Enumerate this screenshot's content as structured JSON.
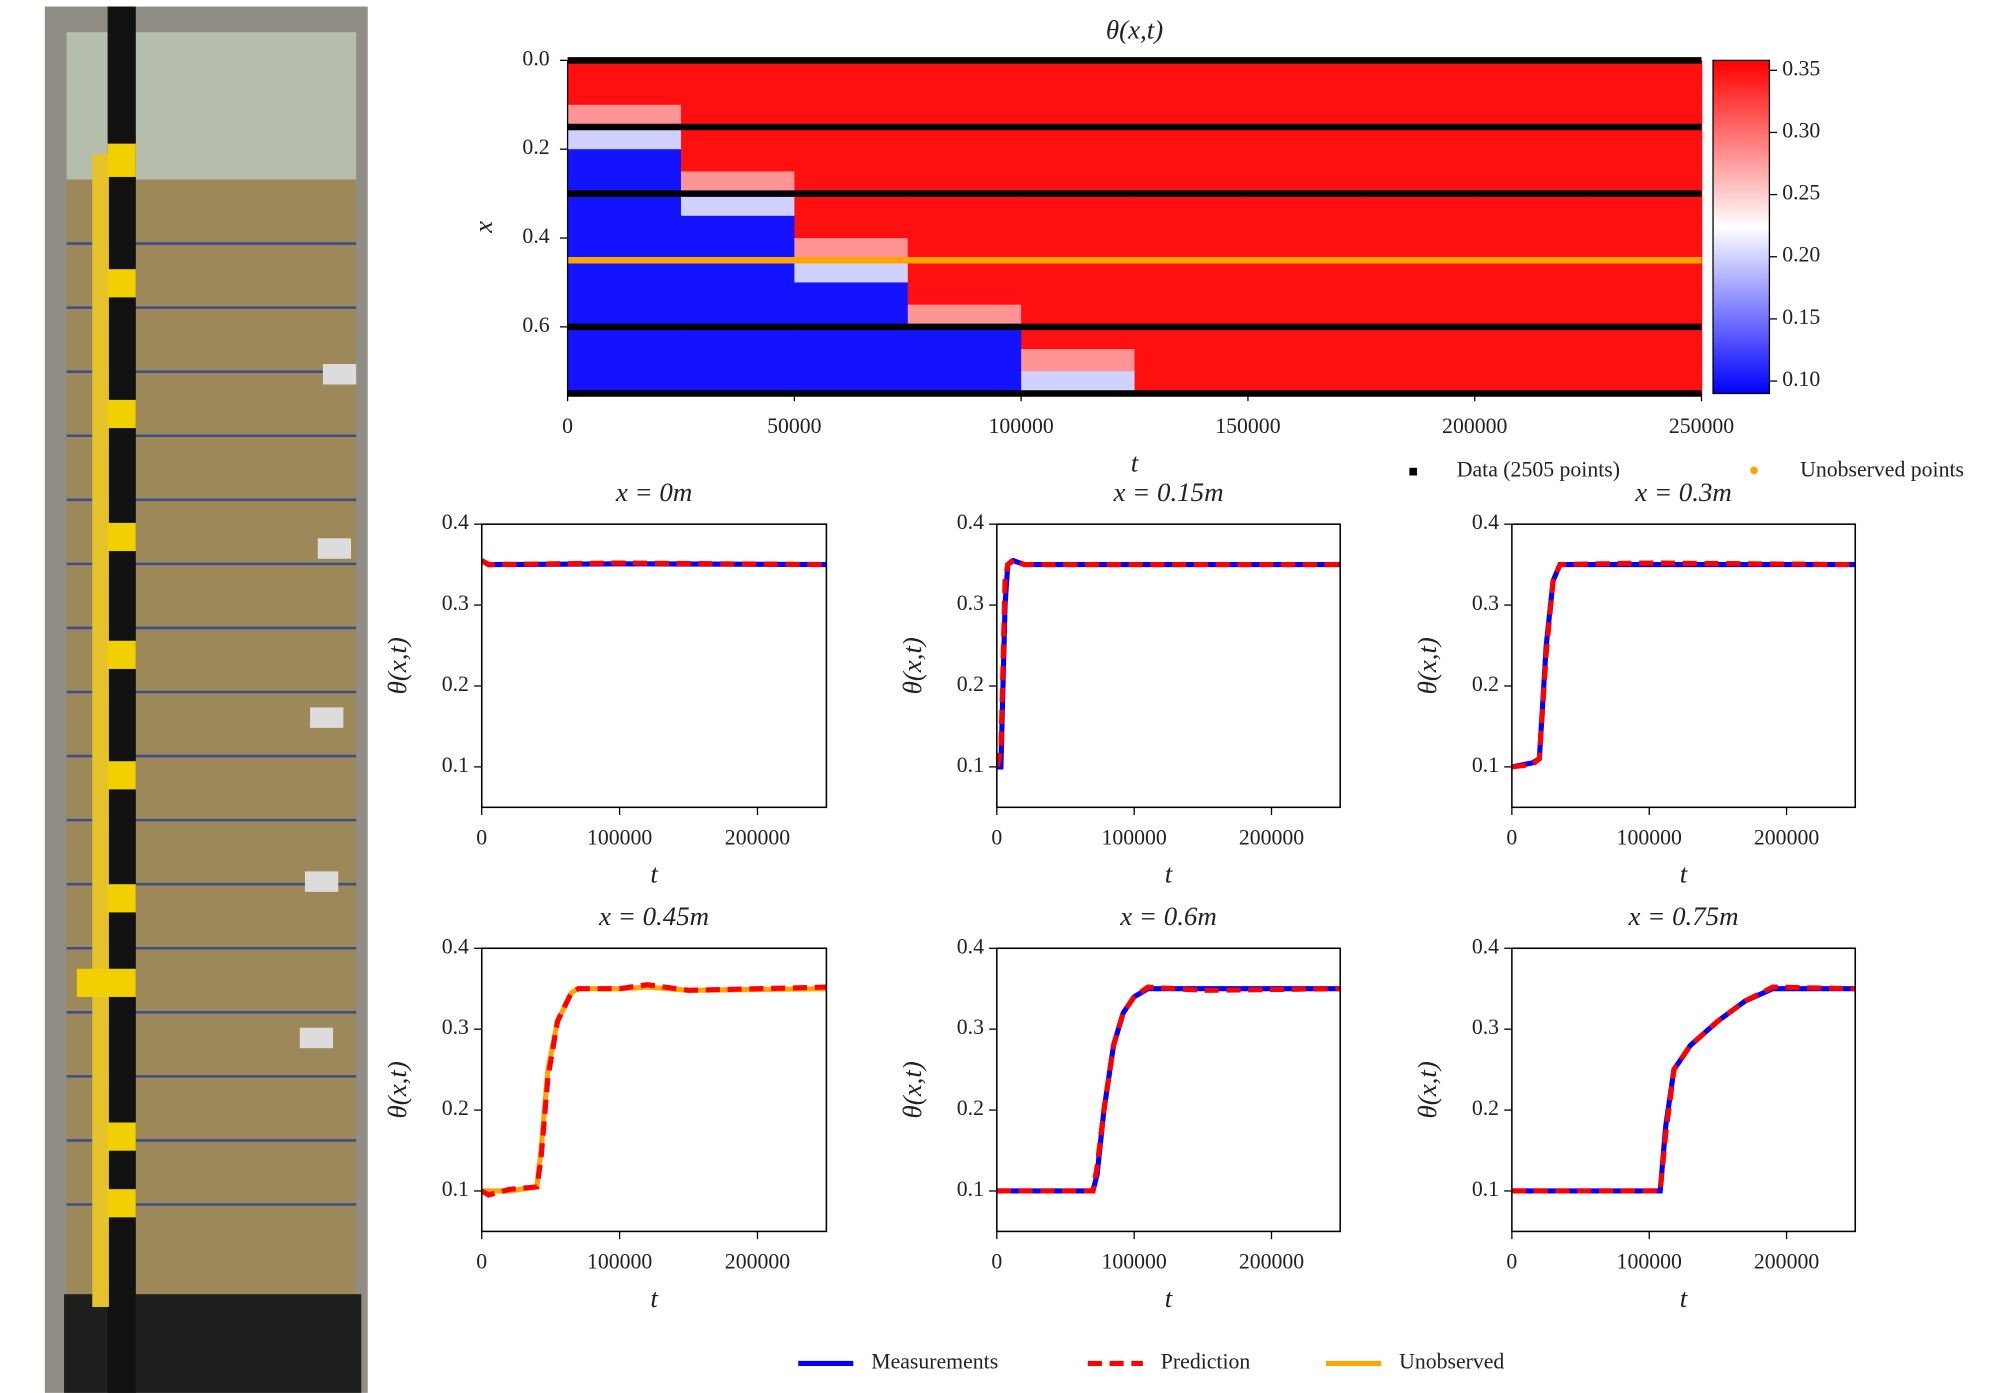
{
  "chart_data": [
    {
      "type": "heatmap",
      "title": "θ(x,t)",
      "xlabel": "t",
      "ylabel": "x",
      "t_edges": [
        0,
        25000,
        50000,
        75000,
        100000,
        125000,
        150000,
        175000,
        200000,
        225000,
        250000
      ],
      "x_edges": [
        0,
        0.05,
        0.1,
        0.15,
        0.2,
        0.25,
        0.3,
        0.35,
        0.4,
        0.45,
        0.5,
        0.55,
        0.6,
        0.65,
        0.7,
        0.75
      ],
      "z": [
        [
          0.35,
          0.35,
          0.35,
          0.35,
          0.35,
          0.35,
          0.35,
          0.35,
          0.35,
          0.35
        ],
        [
          0.35,
          0.35,
          0.35,
          0.35,
          0.35,
          0.35,
          0.35,
          0.35,
          0.35,
          0.35
        ],
        [
          0.28,
          0.35,
          0.35,
          0.35,
          0.35,
          0.35,
          0.35,
          0.35,
          0.35,
          0.35
        ],
        [
          0.2,
          0.35,
          0.35,
          0.35,
          0.35,
          0.35,
          0.35,
          0.35,
          0.35,
          0.35
        ],
        [
          0.1,
          0.35,
          0.35,
          0.35,
          0.35,
          0.35,
          0.35,
          0.35,
          0.35,
          0.35
        ],
        [
          0.1,
          0.28,
          0.35,
          0.35,
          0.35,
          0.35,
          0.35,
          0.35,
          0.35,
          0.35
        ],
        [
          0.1,
          0.2,
          0.35,
          0.35,
          0.35,
          0.35,
          0.35,
          0.35,
          0.35,
          0.35
        ],
        [
          0.1,
          0.1,
          0.35,
          0.35,
          0.35,
          0.35,
          0.35,
          0.35,
          0.35,
          0.35
        ],
        [
          0.1,
          0.1,
          0.28,
          0.35,
          0.35,
          0.35,
          0.35,
          0.35,
          0.35,
          0.35
        ],
        [
          0.1,
          0.1,
          0.2,
          0.35,
          0.35,
          0.35,
          0.35,
          0.35,
          0.35,
          0.35
        ],
        [
          0.1,
          0.1,
          0.1,
          0.35,
          0.35,
          0.35,
          0.35,
          0.35,
          0.35,
          0.35
        ],
        [
          0.1,
          0.1,
          0.1,
          0.28,
          0.35,
          0.35,
          0.35,
          0.35,
          0.35,
          0.35
        ],
        [
          0.1,
          0.1,
          0.1,
          0.1,
          0.35,
          0.35,
          0.35,
          0.35,
          0.35,
          0.35
        ],
        [
          0.1,
          0.1,
          0.1,
          0.1,
          0.28,
          0.35,
          0.35,
          0.35,
          0.35,
          0.35
        ],
        [
          0.1,
          0.1,
          0.1,
          0.1,
          0.2,
          0.35,
          0.35,
          0.35,
          0.35,
          0.35
        ]
      ],
      "xlim": [
        0,
        250000
      ],
      "ylim": [
        0,
        0.75
      ],
      "y_inverted": true,
      "xticks": [
        0,
        50000,
        100000,
        150000,
        200000,
        250000
      ],
      "yticks": [
        {
          "value": 0,
          "label": "0.0"
        },
        0.2,
        0.4,
        0.6
      ],
      "colormap": [
        "#0000ff",
        "#ffffff",
        "#ff0000"
      ],
      "clim": [
        0.09,
        0.358
      ],
      "cticks": [
        {
          "value": 0.1,
          "label": "0.10"
        },
        0.15,
        {
          "value": 0.2,
          "label": "0.20"
        },
        0.25,
        {
          "value": 0.3,
          "label": "0.30"
        },
        0.35
      ],
      "sensor_x": [
        0,
        0.15,
        0.3,
        0.6,
        0.75
      ],
      "sensor_color": "#000000",
      "sensor_label": "Data (2505 points)",
      "unobserved_x": [
        0.45
      ],
      "unobserved_color": "#ffa500",
      "unobserved_label": "Unobserved points"
    },
    {
      "type": "line",
      "title": "x = 0m",
      "xlabel": "t",
      "ylabel": "θ(x,t)",
      "xlim": [
        0,
        250000
      ],
      "ylim": [
        0.05,
        0.4
      ],
      "xticks": [
        0,
        100000,
        200000
      ],
      "yticks": [
        0.1,
        0.2,
        0.3,
        0.4
      ],
      "x": [
        0,
        5000,
        100000,
        250000
      ],
      "series": [
        {
          "name": "Measurements",
          "color": "#0000ff",
          "values": [
            0.355,
            0.35,
            0.351,
            0.35
          ]
        },
        {
          "name": "Prediction",
          "color": "#ff0000",
          "dash": true,
          "values": [
            0.355,
            0.35,
            0.352,
            0.35
          ]
        }
      ]
    },
    {
      "type": "line",
      "title": "x = 0.15m",
      "xlabel": "t",
      "ylabel": "θ(x,t)",
      "xlim": [
        0,
        250000
      ],
      "ylim": [
        0.05,
        0.4
      ],
      "xticks": [
        0,
        100000,
        200000
      ],
      "yticks": [
        0.1,
        0.2,
        0.3,
        0.4
      ],
      "x": [
        0,
        3000,
        6000,
        8000,
        12000,
        20000,
        100000,
        250000
      ],
      "series": [
        {
          "name": "Measurements",
          "color": "#0000ff",
          "values": [
            0.1,
            0.1,
            0.3,
            0.35,
            0.355,
            0.35,
            0.35,
            0.35
          ]
        },
        {
          "name": "Prediction",
          "color": "#ff0000",
          "dash": true,
          "values": [
            0.1,
            0.12,
            0.33,
            0.35,
            0.356,
            0.35,
            0.35,
            0.35
          ]
        }
      ]
    },
    {
      "type": "line",
      "title": "x = 0.3m",
      "xlabel": "t",
      "ylabel": "θ(x,t)",
      "xlim": [
        0,
        250000
      ],
      "ylim": [
        0.05,
        0.4
      ],
      "xticks": [
        0,
        100000,
        200000
      ],
      "yticks": [
        0.1,
        0.2,
        0.3,
        0.4
      ],
      "x": [
        0,
        15000,
        20000,
        25000,
        30000,
        35000,
        100000,
        250000
      ],
      "series": [
        {
          "name": "Measurements",
          "color": "#0000ff",
          "values": [
            0.1,
            0.105,
            0.11,
            0.25,
            0.33,
            0.35,
            0.35,
            0.35
          ]
        },
        {
          "name": "Prediction",
          "color": "#ff0000",
          "dash": true,
          "values": [
            0.1,
            0.103,
            0.11,
            0.24,
            0.33,
            0.35,
            0.352,
            0.35
          ]
        }
      ]
    },
    {
      "type": "line",
      "title": "x = 0.45m",
      "xlabel": "t",
      "ylabel": "θ(x,t)",
      "xlim": [
        0,
        250000
      ],
      "ylim": [
        0.05,
        0.4
      ],
      "xticks": [
        0,
        100000,
        200000
      ],
      "yticks": [
        0.1,
        0.2,
        0.3,
        0.4
      ],
      "x": [
        0,
        5000,
        20000,
        40000,
        43000,
        48000,
        55000,
        65000,
        70000,
        100000,
        120000,
        150000,
        250000
      ],
      "series": [
        {
          "name": "Unobserved",
          "color": "#ffa500",
          "values": [
            0.1,
            0.1,
            0.1,
            0.105,
            0.15,
            0.25,
            0.31,
            0.345,
            0.35,
            0.35,
            0.352,
            0.348,
            0.35
          ]
        },
        {
          "name": "Prediction",
          "color": "#ff0000",
          "dash": true,
          "values": [
            0.1,
            0.095,
            0.102,
            0.105,
            0.14,
            0.24,
            0.31,
            0.345,
            0.35,
            0.35,
            0.355,
            0.348,
            0.352
          ]
        }
      ]
    },
    {
      "type": "line",
      "title": "x = 0.6m",
      "xlabel": "t",
      "ylabel": "θ(x,t)",
      "xlim": [
        0,
        250000
      ],
      "ylim": [
        0.05,
        0.4
      ],
      "xticks": [
        0,
        100000,
        200000
      ],
      "yticks": [
        0.1,
        0.2,
        0.3,
        0.4
      ],
      "x": [
        0,
        70000,
        73000,
        78000,
        85000,
        92000,
        100000,
        110000,
        150000,
        250000
      ],
      "series": [
        {
          "name": "Measurements",
          "color": "#0000ff",
          "values": [
            0.1,
            0.1,
            0.12,
            0.2,
            0.28,
            0.32,
            0.34,
            0.35,
            0.35,
            0.35
          ]
        },
        {
          "name": "Prediction",
          "color": "#ff0000",
          "dash": true,
          "values": [
            0.1,
            0.1,
            0.13,
            0.2,
            0.28,
            0.32,
            0.34,
            0.352,
            0.348,
            0.35
          ]
        }
      ]
    },
    {
      "type": "line",
      "title": "x = 0.75m",
      "xlabel": "t",
      "ylabel": "θ(x,t)",
      "xlim": [
        0,
        250000
      ],
      "ylim": [
        0.05,
        0.4
      ],
      "xticks": [
        0,
        100000,
        200000
      ],
      "yticks": [
        0.1,
        0.2,
        0.3,
        0.4
      ],
      "x": [
        0,
        100000,
        108000,
        112000,
        118000,
        130000,
        150000,
        170000,
        190000,
        250000
      ],
      "series": [
        {
          "name": "Measurements",
          "color": "#0000ff",
          "values": [
            0.1,
            0.1,
            0.1,
            0.18,
            0.25,
            0.28,
            0.31,
            0.335,
            0.35,
            0.35
          ]
        },
        {
          "name": "Prediction",
          "color": "#ff0000",
          "dash": true,
          "values": [
            0.1,
            0.1,
            0.1,
            0.17,
            0.25,
            0.28,
            0.31,
            0.335,
            0.352,
            0.35
          ]
        }
      ]
    }
  ]
}
